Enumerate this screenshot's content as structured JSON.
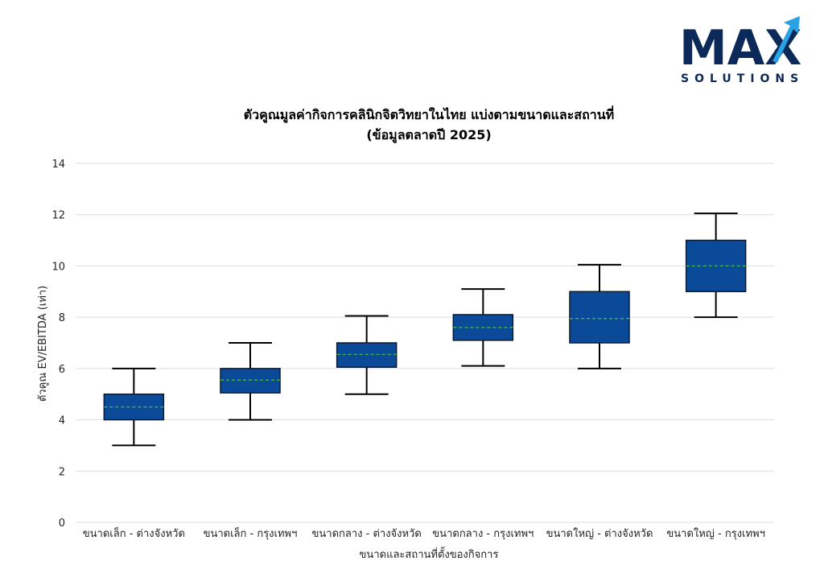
{
  "logo": {
    "word": "MAX",
    "sub": "SOLUTIONS",
    "colors": {
      "dark": "#0b2a5a",
      "accent": "#29a3e6"
    }
  },
  "chart_data": {
    "type": "box",
    "title_lines": [
      "ตัวคูณมูลค่ากิจการคลินิกจิตวิทยาในไทย แบ่งตามขนาดและสถานที่",
      "(ข้อมูลตลาดปี 2025)"
    ],
    "xlabel": "ขนาดและสถานที่ตั้งของกิจการ",
    "ylabel": "ตัวคูณ EV/EBITDA (เท่า)",
    "ylim": [
      0,
      14
    ],
    "yticks": [
      0,
      2,
      4,
      6,
      8,
      10,
      12,
      14
    ],
    "grid": true,
    "colors": {
      "box_fill": "#0a4a99",
      "box_edge": "#0a1a33",
      "mean_line": "#3cb043",
      "grid": "#dddddd"
    },
    "categories": [
      "ขนาดเล็ก - ต่างจังหวัด",
      "ขนาดเล็ก - กรุงเทพฯ",
      "ขนาดกลาง - ต่างจังหวัด",
      "ขนาดกลาง - กรุงเทพฯ",
      "ขนาดใหญ่ - ต่างจังหวัด",
      "ขนาดใหญ่ - กรุงเทพฯ"
    ],
    "boxes": [
      {
        "min": 3.0,
        "q1": 4.0,
        "q3": 5.0,
        "max": 6.0,
        "mean": 4.5
      },
      {
        "min": 4.0,
        "q1": 5.05,
        "q3": 6.0,
        "max": 7.0,
        "mean": 5.55
      },
      {
        "min": 5.0,
        "q1": 6.05,
        "q3": 7.0,
        "max": 8.05,
        "mean": 6.55
      },
      {
        "min": 6.1,
        "q1": 7.1,
        "q3": 8.1,
        "max": 9.1,
        "mean": 7.6
      },
      {
        "min": 6.0,
        "q1": 7.0,
        "q3": 9.0,
        "max": 10.05,
        "mean": 7.95
      },
      {
        "min": 8.0,
        "q1": 9.0,
        "q3": 11.0,
        "max": 12.05,
        "mean": 10.0
      }
    ]
  }
}
